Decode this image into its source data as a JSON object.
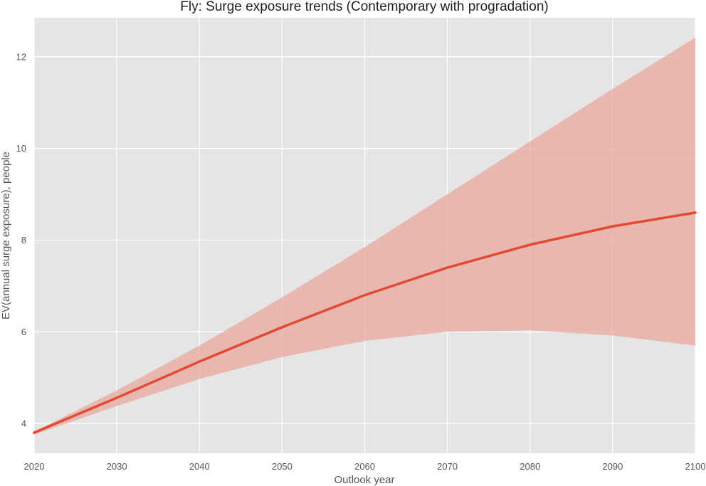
{
  "chart_data": {
    "type": "line",
    "title": "Fly: Surge exposure trends (Contemporary with progradation)",
    "xlabel": "Outlook year",
    "ylabel": "EV(annual surge exposure), people",
    "x": [
      2020,
      2030,
      2040,
      2050,
      2060,
      2070,
      2080,
      2090,
      2100
    ],
    "xlim": [
      2020,
      2100
    ],
    "ylim": [
      3.35,
      12.85
    ],
    "xticks": [
      "2020",
      "2030",
      "2040",
      "2050",
      "2060",
      "2070",
      "2080",
      "2090",
      "2100"
    ],
    "yticks": [
      "4",
      "6",
      "8",
      "10",
      "12"
    ],
    "grid": true,
    "series": [
      {
        "values": [
          3.8,
          4.56,
          5.35,
          6.1,
          6.8,
          7.4,
          7.9,
          8.3,
          8.6
        ],
        "upper": [
          3.82,
          4.72,
          5.7,
          6.75,
          7.85,
          9.0,
          10.15,
          11.3,
          12.42
        ],
        "lower": [
          3.76,
          4.38,
          4.97,
          5.45,
          5.8,
          6.0,
          6.03,
          5.92,
          5.7
        ],
        "color": "#e24a33",
        "band_color": "#e8a79d"
      }
    ],
    "background_color": "#e5e5e5"
  }
}
